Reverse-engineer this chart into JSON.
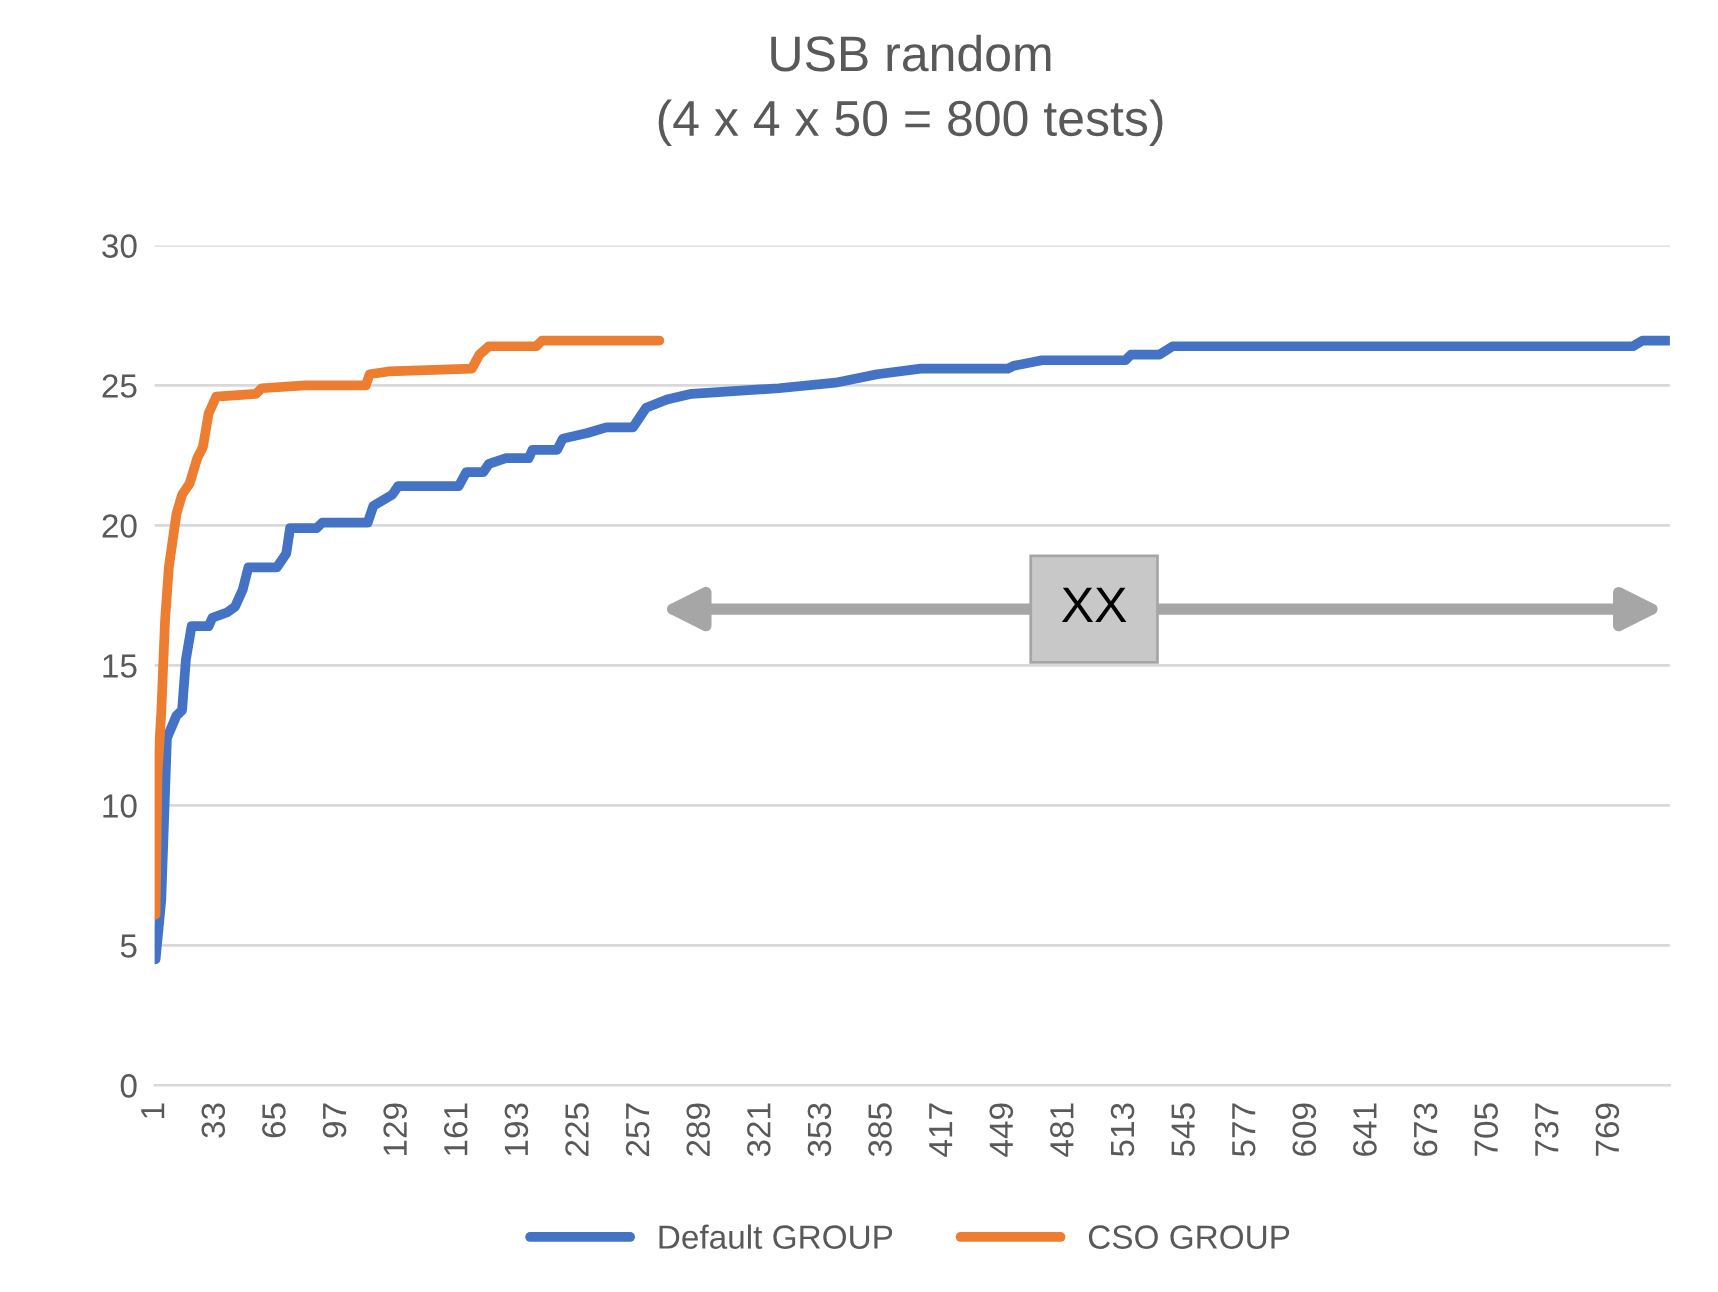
{
  "chart_data": {
    "type": "line",
    "title": "USB random",
    "subtitle": "(4 x 4 x 50 = 800 tests)",
    "series": [
      {
        "name": "Default GROUP",
        "color": "#4472c4",
        "x": [
          1,
          4,
          7,
          12,
          15,
          17,
          20,
          29,
          31,
          39,
          43,
          47,
          50,
          65,
          70,
          72,
          86,
          89,
          113,
          116,
          126,
          129,
          161,
          165,
          174,
          177,
          186,
          198,
          200,
          213,
          216,
          229,
          239,
          253,
          260,
          271,
          284,
          306,
          330,
          360,
          382,
          405,
          451,
          454,
          469,
          513,
          516,
          531,
          538,
          781,
          786,
          800
        ],
        "values": [
          4.5,
          6.6,
          12.4,
          13.2,
          13.4,
          15.2,
          16.4,
          16.4,
          16.7,
          16.9,
          17.1,
          17.7,
          18.5,
          18.5,
          19.0,
          19.9,
          19.9,
          20.1,
          20.1,
          20.7,
          21.1,
          21.4,
          21.4,
          21.9,
          21.9,
          22.2,
          22.4,
          22.4,
          22.7,
          22.7,
          23.1,
          23.3,
          23.5,
          23.5,
          24.2,
          24.5,
          24.7,
          24.8,
          24.9,
          25.1,
          25.4,
          25.6,
          25.6,
          25.7,
          25.9,
          25.9,
          26.1,
          26.1,
          26.4,
          26.4,
          26.6,
          26.6
        ]
      },
      {
        "name": "CSO GROUP",
        "color": "#ed7d31",
        "x": [
          1,
          2,
          4,
          6,
          8,
          12,
          15,
          19,
          23,
          26,
          29,
          33,
          54,
          57,
          80,
          112,
          114,
          124,
          168,
          172,
          177,
          202,
          205,
          267
        ],
        "values": [
          6.1,
          11.1,
          13.3,
          16.6,
          18.5,
          20.4,
          21.1,
          21.5,
          22.4,
          22.8,
          24.0,
          24.6,
          24.7,
          24.9,
          25.0,
          25.0,
          25.4,
          25.5,
          25.6,
          26.1,
          26.4,
          26.4,
          26.6,
          26.6
        ]
      }
    ],
    "xlim": [
      0.5,
      800.5
    ],
    "xticks": [
      1,
      33,
      65,
      97,
      129,
      161,
      193,
      225,
      257,
      289,
      321,
      353,
      385,
      417,
      449,
      481,
      513,
      545,
      577,
      609,
      641,
      673,
      705,
      737,
      769
    ],
    "ylim": [
      0,
      30
    ],
    "yticks": [
      0,
      5,
      10,
      15,
      20,
      25,
      30
    ],
    "grid": "y",
    "legend": "bottom",
    "marker": "none",
    "line_style": "solid",
    "annotations": [
      "XX"
    ]
  }
}
